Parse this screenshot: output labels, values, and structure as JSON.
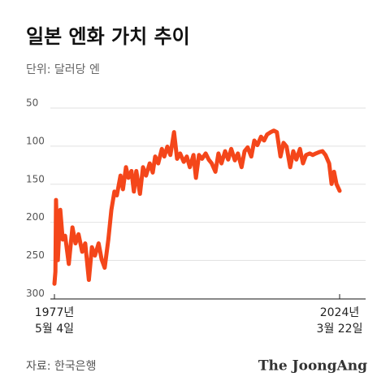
{
  "chart_data": {
    "type": "line",
    "title": "일본 엔화 가치 추이",
    "subtitle": "단위: 달러당 엔",
    "source": "자료: 한국은행",
    "logo": "The JoongAng",
    "x": [
      1977.34,
      1977.5,
      1977.6,
      1977.9,
      1978.3,
      1978.7,
      1979.1,
      1979.7,
      1980.3,
      1980.8,
      1981.3,
      1981.9,
      1982.4,
      1983.0,
      1983.5,
      1984.0,
      1984.6,
      1985.1,
      1985.6,
      1986.2,
      1986.7,
      1987.2,
      1987.6,
      1988.2,
      1988.6,
      1989.1,
      1989.5,
      1990.0,
      1990.4,
      1990.8,
      1991.4,
      1991.9,
      1992.4,
      1993.0,
      1993.5,
      1993.9,
      1994.4,
      1995.0,
      1995.4,
      1995.9,
      1996.4,
      1997.0,
      1997.5,
      1998.0,
      1998.6,
      1999.1,
      1999.6,
      2000.2,
      2000.6,
      2001.1,
      2001.6,
      2002.2,
      2002.7,
      2003.2,
      2003.8,
      2004.3,
      2004.8,
      2005.4,
      2005.9,
      2006.4,
      2007.0,
      2007.5,
      2008.1,
      2008.6,
      2009.1,
      2009.7,
      2010.2,
      2010.7,
      2011.3,
      2011.8,
      2012.3,
      2012.9,
      2013.4,
      2013.9,
      2014.5,
      2015.0,
      2015.5,
      2016.1,
      2016.6,
      2017.1,
      2017.7,
      2018.2,
      2018.7,
      2019.3,
      2019.8,
      2020.3,
      2020.9,
      2021.4,
      2021.9,
      2022.5,
      2022.9,
      2023.3,
      2023.7,
      2024.22
    ],
    "series": [
      {
        "color": "#f4461a",
        "values": [
          287,
          271,
          177,
          256,
          190,
          229,
          224,
          261,
          213,
          234,
          222,
          245,
          234,
          282,
          239,
          250,
          234,
          255,
          266,
          229,
          190,
          166,
          171,
          145,
          163,
          134,
          148,
          139,
          166,
          139,
          169,
          134,
          145,
          129,
          141,
          120,
          129,
          110,
          120,
          107,
          118,
          88,
          123,
          116,
          127,
          120,
          134,
          118,
          148,
          118,
          123,
          116,
          124,
          129,
          140,
          116,
          129,
          113,
          124,
          110,
          125,
          116,
          134,
          113,
          108,
          120,
          99,
          105,
          94,
          99,
          91,
          88,
          86,
          88,
          120,
          102,
          107,
          134,
          113,
          124,
          110,
          129,
          118,
          116,
          118,
          116,
          114,
          113,
          118,
          129,
          156,
          140,
          156,
          165
        ]
      }
    ],
    "xlim": [
      1977.34,
      2024.22
    ],
    "xticks": [
      {
        "value": 1977.34,
        "label": [
          "1977년",
          "5월 4일"
        ]
      },
      {
        "value": 2024.22,
        "label": [
          "2024년",
          "3월 22일"
        ]
      }
    ],
    "ylim": [
      307,
      50
    ],
    "yticks": [
      50,
      100,
      150,
      200,
      250,
      300
    ],
    "grid": true
  }
}
